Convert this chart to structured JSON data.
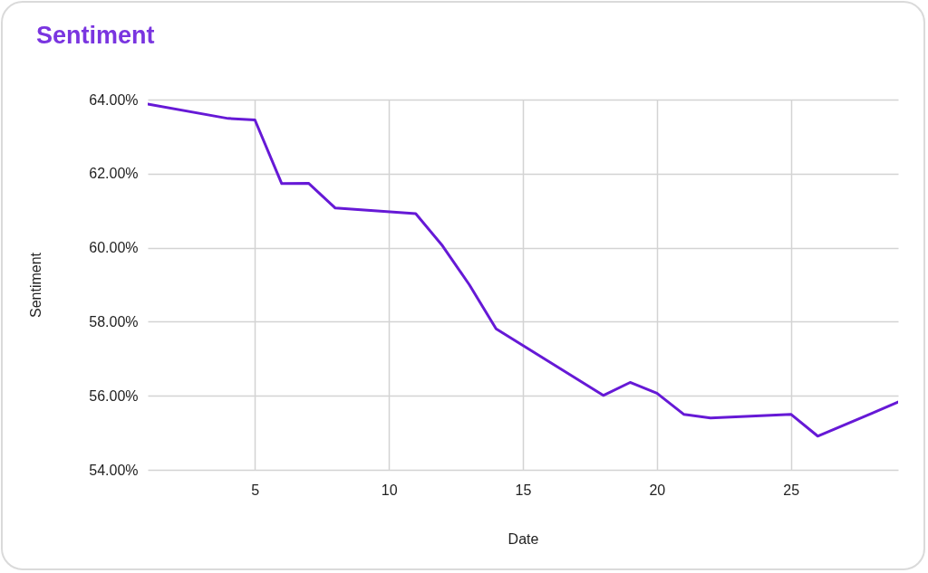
{
  "chart_data": {
    "type": "line",
    "title": "Sentiment",
    "xlabel": "Date",
    "ylabel": "Sentiment",
    "x": [
      1,
      4,
      5,
      6,
      7,
      8,
      11,
      12,
      13,
      14,
      18,
      19,
      20,
      21,
      22,
      25,
      26,
      28,
      29
    ],
    "series": [
      {
        "color": "#6619d6",
        "values": [
          63.88,
          63.49,
          63.45,
          61.73,
          61.74,
          61.07,
          60.92,
          60.05,
          59.0,
          57.81,
          56.01,
          56.36,
          56.07,
          55.5,
          55.4,
          55.5,
          54.91,
          55.52,
          55.83
        ]
      }
    ],
    "xlim": [
      1,
      29
    ],
    "xticks": [
      5,
      10,
      15,
      20,
      25
    ],
    "ylim": [
      54,
      64
    ],
    "yticks": [
      {
        "value": 54,
        "label": "54.00%"
      },
      {
        "value": 56,
        "label": "56.00%"
      },
      {
        "value": 58,
        "label": "58.00%"
      },
      {
        "value": 60,
        "label": "60.00%"
      },
      {
        "value": 62,
        "label": "62.00%"
      },
      {
        "value": 64,
        "label": "64.00%"
      }
    ],
    "grid": true
  }
}
